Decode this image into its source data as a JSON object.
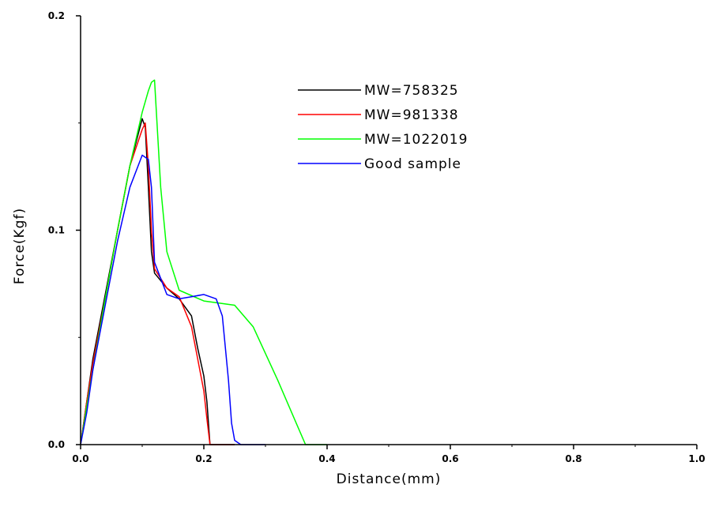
{
  "chart_data": {
    "type": "line",
    "title": "",
    "xlabel": "Distance(mm)",
    "ylabel": "Force(Kgf)",
    "xlim": [
      0,
      1.0
    ],
    "ylim": [
      0,
      0.2
    ],
    "x_ticks": [
      0.0,
      0.2,
      0.4,
      0.6,
      0.8,
      1.0
    ],
    "x_tick_labels": [
      "0.0",
      "0.2",
      "0.4",
      "0.6",
      "0.8",
      "1.0"
    ],
    "y_ticks": [
      0.0,
      0.1,
      0.2
    ],
    "y_tick_labels": [
      "0.0",
      "0.1",
      "0.2"
    ],
    "grid": false,
    "legend_position": "top-center",
    "series": [
      {
        "name": "MW=758325",
        "color": "#000000",
        "x": [
          0.0,
          0.01,
          0.02,
          0.04,
          0.06,
          0.08,
          0.1,
          0.105,
          0.11,
          0.115,
          0.12,
          0.14,
          0.16,
          0.18,
          0.19,
          0.2,
          0.205,
          0.21,
          0.25
        ],
        "y": [
          0.0,
          0.02,
          0.04,
          0.07,
          0.1,
          0.13,
          0.152,
          0.148,
          0.12,
          0.09,
          0.08,
          0.073,
          0.068,
          0.06,
          0.045,
          0.032,
          0.02,
          0.0,
          0.0
        ]
      },
      {
        "name": "MW=981338",
        "color": "#ff0000",
        "x": [
          0.0,
          0.01,
          0.02,
          0.04,
          0.06,
          0.08,
          0.1,
          0.105,
          0.11,
          0.115,
          0.12,
          0.14,
          0.16,
          0.18,
          0.19,
          0.2,
          0.205,
          0.21,
          0.25
        ],
        "y": [
          0.0,
          0.02,
          0.038,
          0.068,
          0.1,
          0.13,
          0.147,
          0.15,
          0.13,
          0.1,
          0.082,
          0.073,
          0.069,
          0.055,
          0.04,
          0.025,
          0.012,
          0.0,
          0.0
        ]
      },
      {
        "name": "MW=1022019",
        "color": "#00ff00",
        "x": [
          0.0,
          0.01,
          0.02,
          0.04,
          0.06,
          0.08,
          0.1,
          0.11,
          0.115,
          0.12,
          0.13,
          0.14,
          0.16,
          0.2,
          0.25,
          0.28,
          0.32,
          0.35,
          0.365,
          0.37,
          0.4
        ],
        "y": [
          0.0,
          0.018,
          0.035,
          0.068,
          0.1,
          0.13,
          0.155,
          0.165,
          0.169,
          0.17,
          0.12,
          0.09,
          0.072,
          0.067,
          0.065,
          0.055,
          0.03,
          0.01,
          0.0,
          0.0,
          0.0
        ]
      },
      {
        "name": "Good sample",
        "color": "#0000ff",
        "x": [
          0.0,
          0.01,
          0.02,
          0.04,
          0.06,
          0.08,
          0.1,
          0.11,
          0.115,
          0.12,
          0.14,
          0.16,
          0.18,
          0.2,
          0.22,
          0.23,
          0.24,
          0.245,
          0.25,
          0.26,
          0.3
        ],
        "y": [
          0.0,
          0.015,
          0.035,
          0.065,
          0.095,
          0.12,
          0.135,
          0.133,
          0.12,
          0.085,
          0.07,
          0.068,
          0.069,
          0.07,
          0.068,
          0.06,
          0.03,
          0.01,
          0.002,
          0.0,
          0.0
        ]
      }
    ]
  }
}
